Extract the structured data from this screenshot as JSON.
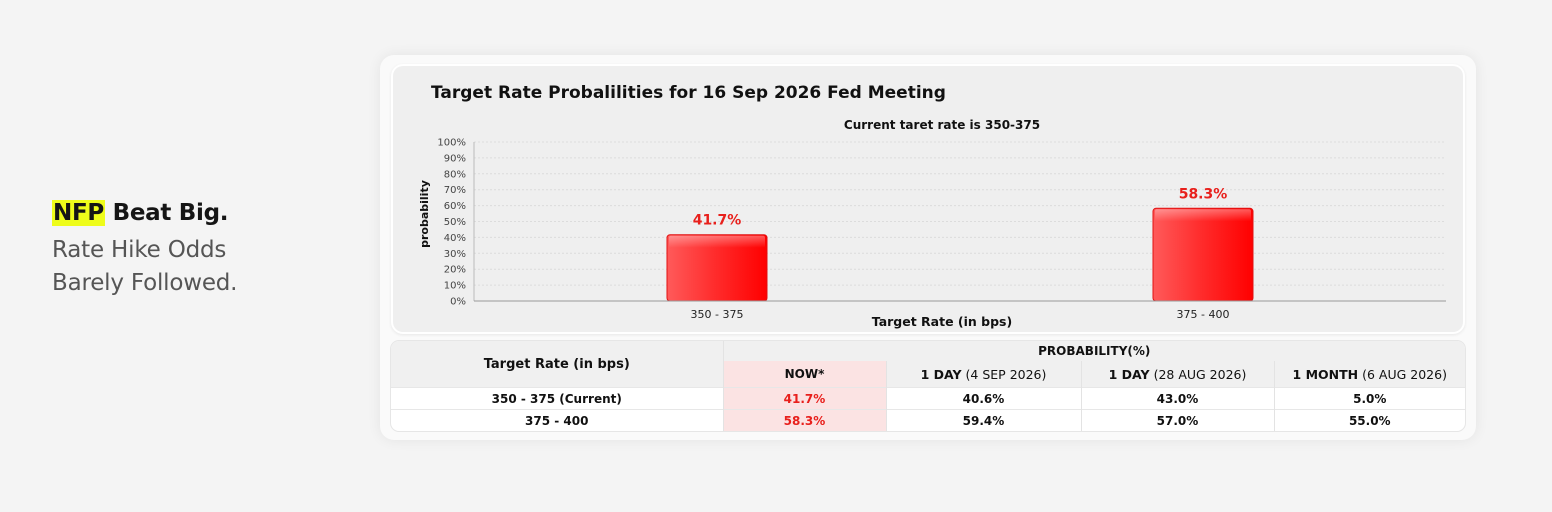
{
  "headline": {
    "highlight": "NFP",
    "rest": " Beat Big.",
    "sub_line1": "Rate Hike Odds",
    "sub_line2": "Barely Followed."
  },
  "colors": {
    "highlight": "#eefc1a",
    "bar": "#ff2020",
    "label": "#e8201c"
  },
  "chart_data": {
    "type": "bar",
    "title": "Target Rate Probalilities for 16 Sep 2026 Fed Meeting",
    "subtitle": "Current taret rate is 350-375",
    "xlabel": "Target Rate (in bps)",
    "ylabel": "probability",
    "categories": [
      "350 - 375",
      "375 - 400"
    ],
    "values": [
      41.7,
      58.3
    ],
    "data_labels": [
      "41.7%",
      "58.3%"
    ],
    "ylim": [
      0,
      100
    ],
    "yticks": [
      "0%",
      "10%",
      "20%",
      "30%",
      "40%",
      "50%",
      "60%",
      "70%",
      "80%",
      "90%",
      "100%"
    ],
    "grid": true
  },
  "table": {
    "rate_header": "Target Rate (in bps)",
    "group_header": "PROBABILITY(%)",
    "columns": [
      {
        "bold": "NOW*",
        "rest": ""
      },
      {
        "bold": "1 DAY",
        "rest": " (4 SEP 2026)"
      },
      {
        "bold": "1 DAY",
        "rest": " (28 AUG 2026)"
      },
      {
        "bold": "1 MONTH",
        "rest": " (6 AUG 2026)"
      }
    ],
    "rows": [
      {
        "rate": "350 - 375 (Current)",
        "values": [
          "41.7%",
          "40.6%",
          "43.0%",
          "5.0%"
        ]
      },
      {
        "rate": "375 - 400",
        "values": [
          "58.3%",
          "59.4%",
          "57.0%",
          "55.0%"
        ]
      }
    ]
  }
}
